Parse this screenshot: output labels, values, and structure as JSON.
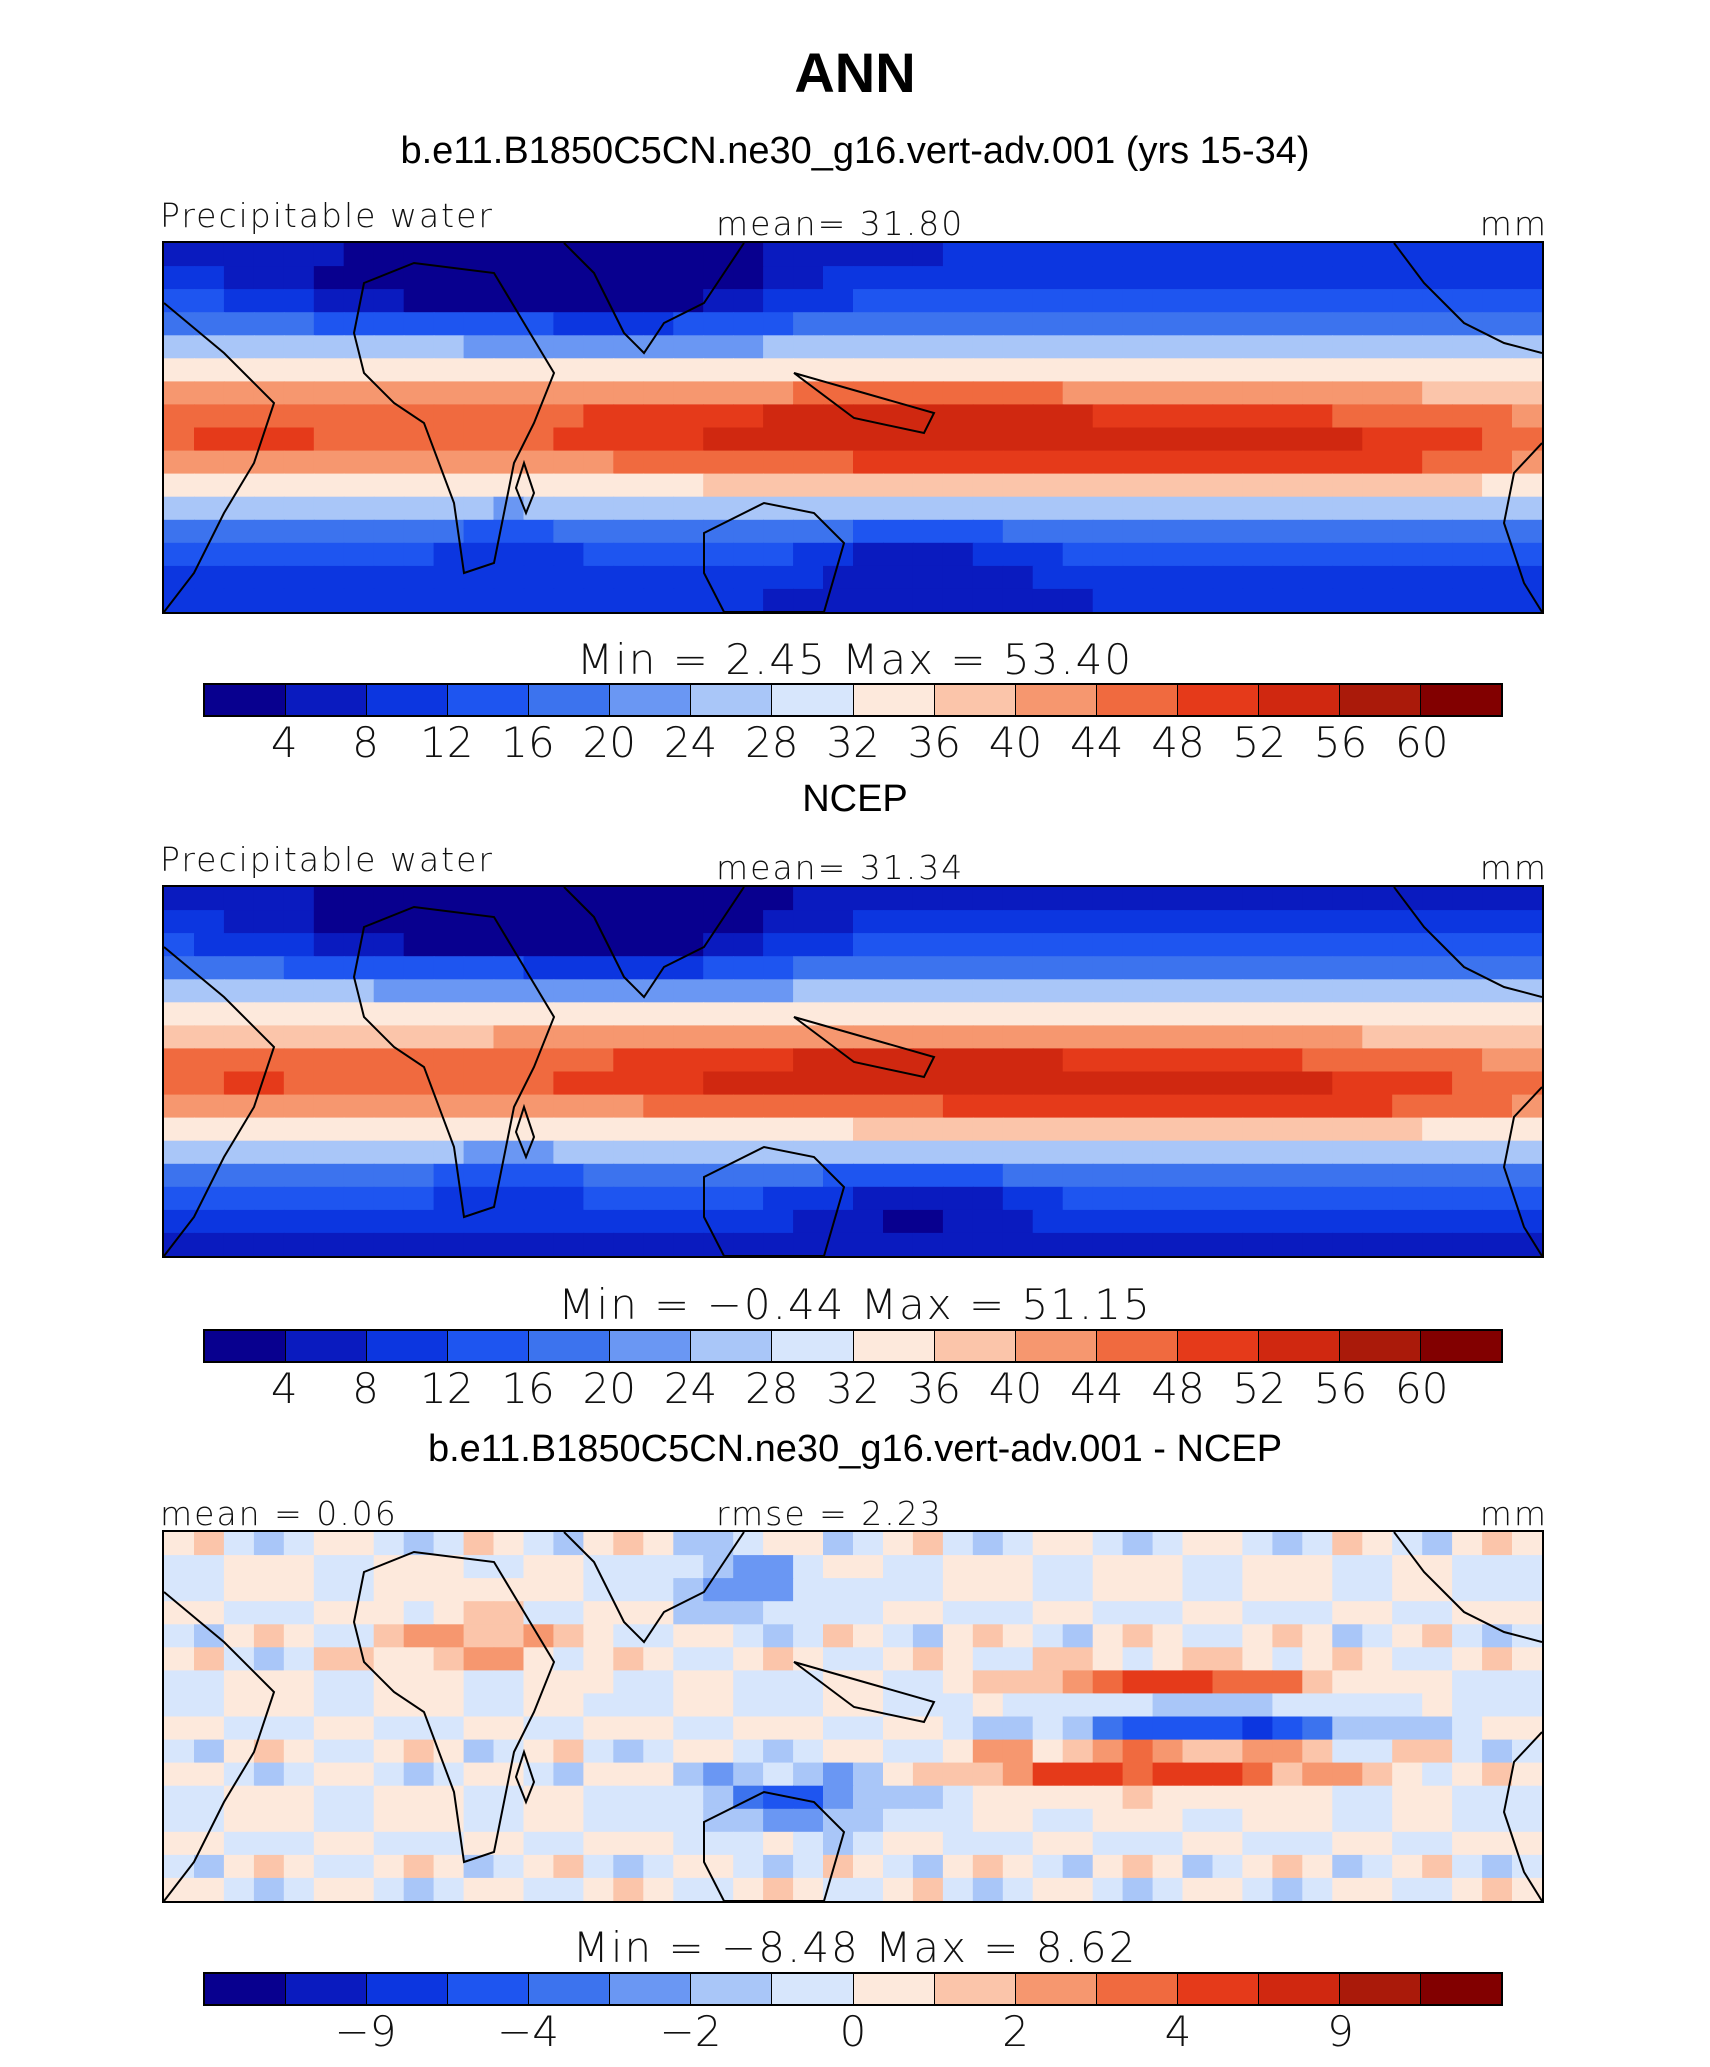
{
  "title": "ANN",
  "colors": [
    "#08008f",
    "#0a1bbf",
    "#0c36e0",
    "#1e55f0",
    "#3c73ee",
    "#6a97f3",
    "#a9c6f8",
    "#d7e6fc",
    "#fde9dc",
    "#fbc5aa",
    "#f6976f",
    "#f06a3f",
    "#e53a1a",
    "#d02810",
    "#aa1a0a",
    "#820000"
  ],
  "chart_data": [
    {
      "type": "heatmap",
      "panel": "model",
      "title": "b.e11.B1850C5CN.ne30_g16.vert-adv.001 (yrs 15-34)",
      "variable": "Precipitable water",
      "mean_label": "mean=   31.80",
      "mean": 31.8,
      "units": "mm",
      "min_max_label": "Min  =     2.45  Max  =   53.40",
      "min": 2.45,
      "max": 53.4,
      "levels": [
        4,
        8,
        12,
        16,
        20,
        24,
        28,
        32,
        36,
        40,
        44,
        48,
        52,
        56,
        60
      ],
      "tick_labels": [
        "4",
        "8",
        "12",
        "16",
        "20",
        "24",
        "28",
        "32",
        "36",
        "40",
        "44",
        "48",
        "52",
        "56",
        "60"
      ]
    },
    {
      "type": "heatmap",
      "panel": "obs",
      "title": "NCEP",
      "variable": "Precipitable water",
      "mean_label": "mean=   31.34",
      "mean": 31.34,
      "units": "mm",
      "min_max_label": "Min  =   −0.44  Max  =    51.15",
      "min": -0.44,
      "max": 51.15,
      "levels": [
        4,
        8,
        12,
        16,
        20,
        24,
        28,
        32,
        36,
        40,
        44,
        48,
        52,
        56,
        60
      ],
      "tick_labels": [
        "4",
        "8",
        "12",
        "16",
        "20",
        "24",
        "28",
        "32",
        "36",
        "40",
        "44",
        "48",
        "52",
        "56",
        "60"
      ]
    },
    {
      "type": "heatmap",
      "panel": "diff",
      "title": "b.e11.B1850C5CN.ne30_g16.vert-adv.001 - NCEP",
      "mean_label": "mean  =     0.06",
      "mean": 0.06,
      "rmse_label": "rmse  =      2.23",
      "rmse": 2.23,
      "units": "mm",
      "min_max_label": "Min  =   −8.48  Max  =     8.62",
      "min": -8.48,
      "max": 8.62,
      "levels": [
        -12,
        -9,
        -6,
        -4,
        -3,
        -2,
        -1,
        0,
        1,
        2,
        3,
        4,
        6,
        9,
        12
      ],
      "tick_labels": [
        "",
        "−9",
        "",
        "−4",
        "",
        "−2",
        "",
        "0",
        "",
        "2",
        "",
        "4",
        "",
        "9",
        ""
      ]
    }
  ]
}
